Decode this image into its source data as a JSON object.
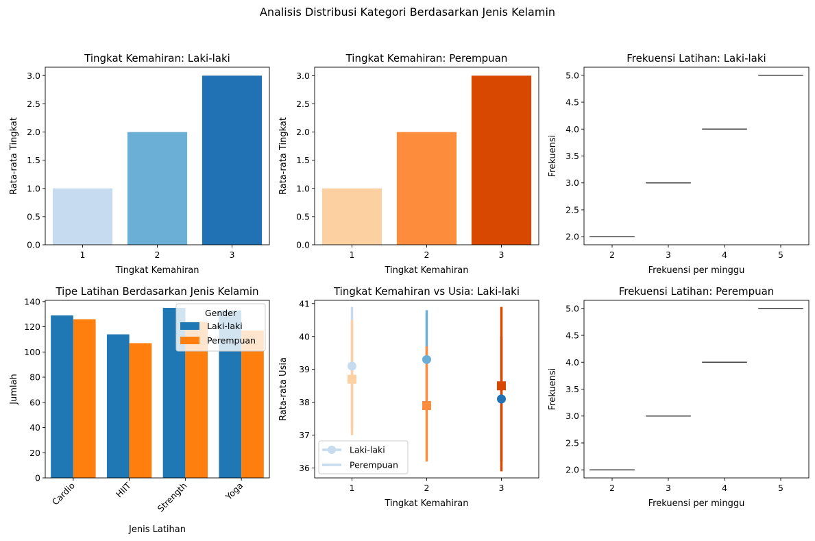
{
  "suptitle": "Analisis Distribusi Kategori Berdasarkan Jenis Kelamin",
  "colors": {
    "blues": [
      "#c6dbef",
      "#6baed6",
      "#2171b5"
    ],
    "oranges": [
      "#fdd0a2",
      "#fd8d3c",
      "#d94801"
    ],
    "male": "#1f77b4",
    "female": "#ff7f0e"
  },
  "chart_data": [
    {
      "id": "p1",
      "type": "bar",
      "title": "Tingkat Kemahiran: Laki-laki",
      "xlabel": "Tingkat Kemahiran",
      "ylabel": "Rata-rata Tingkat",
      "categories": [
        "1",
        "2",
        "3"
      ],
      "values": [
        1.0,
        2.0,
        3.0
      ],
      "ylim": [
        0,
        3.15
      ],
      "yticks": [
        "0.0",
        "0.5",
        "1.0",
        "1.5",
        "2.0",
        "2.5",
        "3.0"
      ],
      "palette": "blues"
    },
    {
      "id": "p2",
      "type": "bar",
      "title": "Tingkat Kemahiran: Perempuan",
      "xlabel": "Tingkat Kemahiran",
      "ylabel": "Rata-rata Tingkat",
      "categories": [
        "1",
        "2",
        "3"
      ],
      "values": [
        1.0,
        2.0,
        3.0
      ],
      "ylim": [
        0,
        3.15
      ],
      "yticks": [
        "0.0",
        "0.5",
        "1.0",
        "1.5",
        "2.0",
        "2.5",
        "3.0"
      ],
      "palette": "oranges"
    },
    {
      "id": "p3",
      "type": "box",
      "title": "Frekuensi Latihan: Laki-laki",
      "xlabel": "Frekuensi per minggu",
      "ylabel": "Frekuensi",
      "categories": [
        "2",
        "3",
        "4",
        "5"
      ],
      "values": [
        2,
        3,
        4,
        5
      ],
      "ylim": [
        1.85,
        5.15
      ],
      "yticks": [
        "2.0",
        "2.5",
        "3.0",
        "3.5",
        "4.0",
        "4.5",
        "5.0"
      ]
    },
    {
      "id": "p4",
      "type": "bar",
      "title": "Tipe Latihan Berdasarkan Jenis Kelamin",
      "xlabel": "Jenis Latihan",
      "ylabel": "Jumlah",
      "categories": [
        "Cardio",
        "HIIT",
        "Strength",
        "Yoga"
      ],
      "series": [
        {
          "name": "Laki-laki",
          "values": [
            129,
            114,
            135,
            133
          ]
        },
        {
          "name": "Perempuan",
          "values": [
            126,
            107,
            124,
            117
          ]
        }
      ],
      "ylim": [
        0,
        141
      ],
      "yticks": [
        "0",
        "20",
        "40",
        "60",
        "80",
        "100",
        "120",
        "140"
      ],
      "legend": {
        "title": "Gender",
        "placement": "top-right"
      }
    },
    {
      "id": "p5",
      "type": "line",
      "title": "Tingkat Kemahiran vs Usia: Laki-laki",
      "xlabel": "Tingkat Kemahiran",
      "ylabel": "Rata-rata Usia",
      "categories": [
        "1",
        "2",
        "3"
      ],
      "series": [
        {
          "name": "Laki-laki",
          "marker": "circle",
          "values": [
            39.1,
            39.3,
            38.1
          ],
          "ci_low": [
            37.2,
            37.9,
            36.2
          ],
          "ci_high": [
            40.9,
            40.8,
            40.0
          ]
        },
        {
          "name": "Perempuan",
          "marker": "square",
          "values": [
            38.7,
            37.9,
            38.5
          ],
          "ci_low": [
            37.0,
            36.2,
            35.9
          ],
          "ci_high": [
            40.5,
            39.7,
            40.9
          ]
        }
      ],
      "ylim": [
        35.7,
        41.1
      ],
      "yticks": [
        "36",
        "37",
        "38",
        "39",
        "40",
        "41"
      ],
      "legend": {
        "placement": "bottom-left"
      }
    },
    {
      "id": "p6",
      "type": "box",
      "title": "Frekuensi Latihan: Perempuan",
      "xlabel": "Frekuensi per minggu",
      "ylabel": "Frekuensi",
      "categories": [
        "2",
        "3",
        "4",
        "5"
      ],
      "values": [
        2,
        3,
        4,
        5
      ],
      "ylim": [
        1.85,
        5.15
      ],
      "yticks": [
        "2.0",
        "2.5",
        "3.0",
        "3.5",
        "4.0",
        "4.5",
        "5.0"
      ]
    }
  ]
}
